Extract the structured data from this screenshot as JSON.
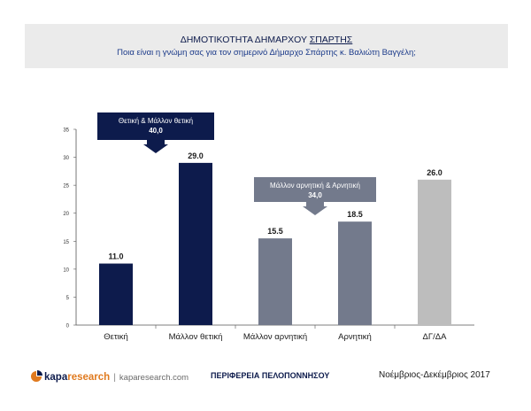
{
  "header": {
    "title_prefix": "ΔΗΜΟΤΙΚΟΤΗΤΑ ΔΗΜΑΡΧΟΥ ",
    "title_underlined": "ΣΠΑΡΤΗΣ",
    "subtitle": "Ποια είναι η γνώμη σας για τον σημερινό Δήμαρχο Σπάρτης κ. Βαλιώτη Βαγγέλη;"
  },
  "chart_data": {
    "type": "bar",
    "categories": [
      "Θετική",
      "Μάλλον θετική",
      "Μάλλον αρνητική",
      "Αρνητική",
      "ΔΓ/ΔΑ"
    ],
    "values": [
      11.0,
      29.0,
      15.5,
      18.5,
      26.0
    ],
    "value_labels": [
      "11.0",
      "29.0",
      "15.5",
      "18.5",
      "26.0"
    ],
    "bar_colors": [
      "#0d1b4c",
      "#0d1b4c",
      "#737a8c",
      "#737a8c",
      "#bdbdbd"
    ],
    "ylim": [
      0,
      35
    ],
    "yticks": [
      0,
      5,
      10,
      15,
      20,
      25,
      30,
      35
    ],
    "grid": false
  },
  "callouts": [
    {
      "label": "Θετική & Μάλλον θετική",
      "value": "40,0",
      "color": "#0d1b4c"
    },
    {
      "label": "Μάλλον αρνητική & Αρνητική",
      "value": "34,0",
      "color": "#737a8c"
    }
  ],
  "footer": {
    "brand_a": "kapa",
    "brand_b": "research",
    "separator": "|",
    "site": "kaparesearch.com",
    "center": "ΠΕΡΙΦΕΡΕΙΑ ΠΕΛΟΠΟΝΝΗΣΟΥ",
    "date": "Νοέμβριος-Δεκέμβριος 2017"
  }
}
